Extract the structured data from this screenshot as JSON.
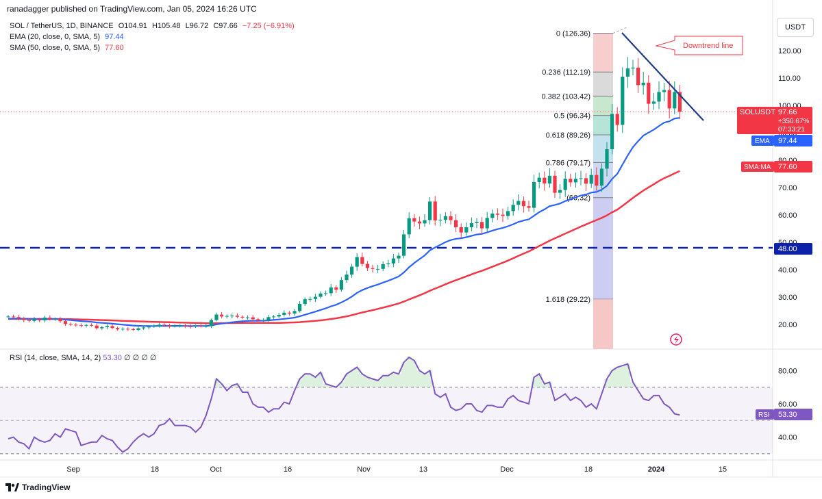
{
  "header": {
    "published": "ranadagger published on TradingView.com, Jan 05, 2024 16:26 UTC",
    "symbol_line": {
      "name": "SOL / TetherUS, 1D, BINANCE",
      "open": "O104.91",
      "high": "H105.48",
      "low": "L96.72",
      "close": "C97.66",
      "change": "−7.25 (−6.91%)"
    },
    "ema_line": {
      "label": "EMA (20, close, 0, SMA, 5)",
      "value": "97.44"
    },
    "sma_line": {
      "label": "SMA (50, close, 0, SMA, 5)",
      "value": "77.60"
    }
  },
  "currency_button": "USDT",
  "price_tags": {
    "last_symbol": "SOLUSDT",
    "last_price": "97.66",
    "last_pct": "+350.67%",
    "last_time": "07:33:21",
    "ema_label": "EMA",
    "ema_value": "97.44",
    "sma_label": "SMA:MA",
    "sma_value": "77.60",
    "level_value": "48.00",
    "rsi_label": "RSI",
    "rsi_value": "53.30"
  },
  "rsi_legend": {
    "label": "RSI (14, close, SMA, 14, 2)",
    "value": "53.30",
    "extras": "∅ ∅ ∅ ∅"
  },
  "annotation": {
    "text": "Downtrend line"
  },
  "footer": {
    "brand": "TradingView"
  },
  "colors": {
    "up": "#089981",
    "down": "#f23645",
    "ema": "#2962ff",
    "sma": "#f23645",
    "rsi": "#7e57c2",
    "level": "#0d22a8",
    "trend": "#1e3a8a"
  },
  "chart_data": [
    {
      "type": "candlestick",
      "title": "SOL / TetherUS, 1D, BINANCE",
      "y_axis_labels": [
        "120.00",
        "110.00",
        "100.00",
        "90.00",
        "80.00",
        "70.00",
        "60.00",
        "50.00",
        "40.00",
        "30.00",
        "20.00"
      ],
      "x_axis_labels": [
        "Sep",
        "18",
        "Oct",
        "16",
        "Nov",
        "13",
        "Dec",
        "18",
        "2024",
        "15"
      ],
      "ylim": [
        12,
        130
      ],
      "close_values": [
        22.9,
        22.7,
        22.2,
        21.6,
        21.3,
        21.9,
        21.5,
        22.5,
        21.9,
        22.0,
        21.2,
        20.2,
        19.9,
        19.7,
        19.6,
        19.8,
        19.6,
        18.6,
        19.0,
        19.4,
        18.7,
        18.2,
        18.4,
        18.3,
        18.0,
        18.6,
        18.9,
        19.2,
        19.4,
        19.9,
        19.7,
        19.3,
        19.4,
        19.6,
        19.3,
        19.2,
        19.5,
        19.4,
        19.4,
        21.6,
        23.6,
        22.9,
        23.1,
        23.2,
        22.8,
        22.5,
        22.6,
        21.9,
        21.5,
        21.6,
        22.7,
        22.9,
        23.5,
        24.3,
        24.0,
        24.9,
        27.5,
        29.2,
        29.3,
        30.1,
        31.3,
        31.4,
        33.5,
        32.7,
        36.2,
        38.2,
        41.1,
        44.6,
        42.1,
        40.6,
        40.3,
        40.3,
        42.0,
        42.3,
        44.1,
        45.1,
        52.9,
        58.8,
        57.6,
        56.9,
        58.1,
        64.9,
        58.0,
        58.2,
        59.5,
        58.1,
        55.5,
        53.6,
        55.5,
        57.0,
        57.4,
        55.1,
        58.9,
        60.5,
        60.1,
        59.6,
        61.4,
        63.7,
        65.1,
        63.2,
        62.6,
        72.0,
        73.6,
        71.5,
        74.3,
        68.1,
        69.1,
        73.2,
        71.9,
        73.2,
        73.4,
        71.4,
        74.6,
        70.7,
        76.9,
        84.0,
        96.9,
        92.9,
        110.5,
        113.5,
        113.8,
        107.4,
        108.3,
        100.6,
        101.4,
        104.9,
        105.6,
        98.9,
        104.9,
        97.66
      ],
      "ema20": {
        "name": "EMA (20, close, 0, SMA, 5)",
        "last": 97.44
      },
      "sma50": {
        "name": "SMA (50, close, 0, SMA, 5)",
        "last": 77.6
      },
      "horizontal_level": 48.0,
      "fibonacci": [
        {
          "ratio": "0",
          "price": 126.36,
          "label": "0 (126.36)"
        },
        {
          "ratio": "0.236",
          "price": 112.19,
          "label": "0.236 (112.19)"
        },
        {
          "ratio": "0.382",
          "price": 103.42,
          "label": "0.382 (103.42)"
        },
        {
          "ratio": "0.5",
          "price": 96.34,
          "label": "0.5 (96.34)"
        },
        {
          "ratio": "0.618",
          "price": 89.26,
          "label": "0.618 (89.26)"
        },
        {
          "ratio": "0.786",
          "price": 79.17,
          "label": "0.786 (79.17)"
        },
        {
          "ratio": "1",
          "price": 66.32,
          "label": "(66.32)"
        },
        {
          "ratio": "1.618",
          "price": 29.22,
          "label": "1.618 (29.22)"
        }
      ],
      "trendline": {
        "from_price": 126.5,
        "to_price": 107.0
      }
    },
    {
      "type": "line",
      "title": "RSI (14, close, SMA, 14, 2)",
      "y_axis_labels": [
        "80.00",
        "60.00",
        "40.00"
      ],
      "ylim": [
        20,
        90
      ],
      "bands": [
        30,
        70
      ],
      "values": [
        39,
        40,
        37,
        36,
        33,
        40,
        38,
        37,
        38,
        42,
        40,
        45,
        44,
        43,
        35,
        36,
        37,
        37,
        41,
        39,
        38,
        34,
        31,
        33,
        37,
        40,
        42,
        40,
        42,
        47,
        48,
        51,
        47,
        47,
        47,
        46,
        43,
        46,
        53,
        63,
        75,
        72,
        68,
        71,
        72,
        67,
        67,
        60,
        58,
        58,
        55,
        57,
        57,
        61,
        60,
        68,
        75,
        78,
        78,
        76,
        79,
        72,
        71,
        70,
        73,
        78,
        80,
        82,
        78,
        76,
        75,
        74,
        77,
        77,
        79,
        78,
        85,
        88,
        86,
        80,
        78,
        80,
        66,
        64,
        66,
        58,
        56,
        57,
        60,
        60,
        56,
        55,
        59,
        59,
        58,
        58,
        63,
        65,
        62,
        61,
        60,
        76,
        78,
        72,
        73,
        62,
        64,
        66,
        62,
        64,
        62,
        58,
        60,
        57,
        66,
        75,
        80,
        82,
        83,
        84,
        73,
        68,
        63,
        62,
        65,
        65,
        60,
        58,
        54,
        53.3
      ]
    }
  ]
}
